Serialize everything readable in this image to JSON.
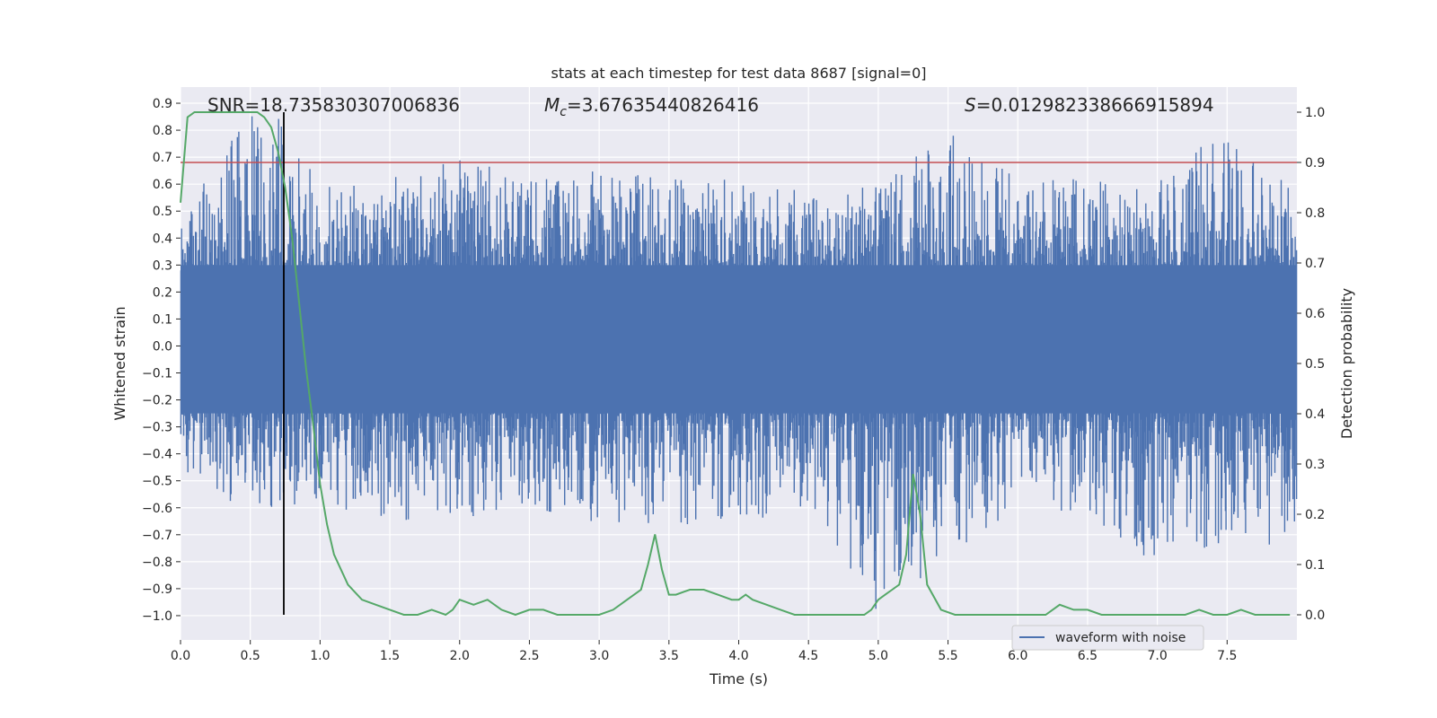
{
  "chart_data": {
    "type": "line",
    "title": "stats at each timestep for test data 8687 [signal=0]",
    "xlabel": "Time (s)",
    "ylabel_left": "Whitened strain",
    "ylabel_right": "Detection probability",
    "xlim": [
      0.0,
      8.0
    ],
    "ylim_left": [
      -1.09,
      0.96
    ],
    "ylim_right": [
      -0.05,
      1.05
    ],
    "x_ticks": [
      "0.0",
      "0.5",
      "1.0",
      "1.5",
      "2.0",
      "2.5",
      "3.0",
      "3.5",
      "4.0",
      "4.5",
      "5.0",
      "5.5",
      "6.0",
      "6.5",
      "7.0",
      "7.5"
    ],
    "y_ticks_left": [
      "0.9",
      "0.8",
      "0.7",
      "0.6",
      "0.5",
      "0.4",
      "0.3",
      "0.2",
      "0.1",
      "0.0",
      "-0.1",
      "-0.2",
      "-0.3",
      "-0.4",
      "-0.5",
      "-0.6",
      "-0.7",
      "-0.8",
      "-0.9",
      "-1.0"
    ],
    "y_ticks_right": [
      "1.0",
      "0.9",
      "0.8",
      "0.7",
      "0.6",
      "0.5",
      "0.4",
      "0.3",
      "0.2",
      "0.1",
      "0.0"
    ],
    "grid": true,
    "legend_position": "bottom-right",
    "legend": [
      "waveform with noise"
    ],
    "annotations": {
      "snr": "SNR=18.735830307006836",
      "mc_symbol": "M",
      "mc_sub": "c",
      "mc_value": "=3.67635440826416",
      "s_symbol": "S",
      "s_value": "=0.012982338666915894"
    },
    "threshold_probability": 0.9,
    "vertical_marker_time": 0.74,
    "colors": {
      "waveform": "#4c72b0",
      "probability": "#55a868",
      "threshold": "#c44e52",
      "marker": "#000000",
      "background": "#eaeaf2",
      "grid": "#ffffff"
    },
    "waveform": {
      "name": "waveform with noise",
      "envelope_t": [
        0.0,
        0.25,
        0.5,
        0.75,
        1.0,
        1.5,
        2.0,
        2.5,
        3.0,
        3.5,
        4.0,
        4.5,
        5.0,
        5.5,
        6.0,
        6.5,
        7.0,
        7.5,
        8.0
      ],
      "envelope_max": [
        0.45,
        0.68,
        0.88,
        0.84,
        0.6,
        0.62,
        0.7,
        0.62,
        0.65,
        0.62,
        0.62,
        0.58,
        0.6,
        0.8,
        0.62,
        0.62,
        0.62,
        0.82,
        0.62
      ],
      "envelope_min": [
        -0.45,
        -0.55,
        -0.62,
        -0.6,
        -0.58,
        -0.68,
        -0.65,
        -0.6,
        -0.66,
        -0.68,
        -0.66,
        -0.6,
        -1.0,
        -0.78,
        -0.6,
        -0.62,
        -0.84,
        -0.72,
        -0.76
      ]
    },
    "probability": {
      "t": [
        0.0,
        0.05,
        0.1,
        0.2,
        0.3,
        0.4,
        0.5,
        0.55,
        0.6,
        0.65,
        0.7,
        0.75,
        0.8,
        0.85,
        0.9,
        0.95,
        1.0,
        1.05,
        1.1,
        1.2,
        1.3,
        1.4,
        1.5,
        1.6,
        1.7,
        1.8,
        1.9,
        1.95,
        2.0,
        2.1,
        2.2,
        2.3,
        2.4,
        2.5,
        2.6,
        2.7,
        2.8,
        2.9,
        3.0,
        3.1,
        3.2,
        3.3,
        3.35,
        3.4,
        3.45,
        3.5,
        3.55,
        3.65,
        3.75,
        3.85,
        3.95,
        4.0,
        4.05,
        4.1,
        4.2,
        4.3,
        4.4,
        4.5,
        4.6,
        4.7,
        4.8,
        4.9,
        4.95,
        5.0,
        5.05,
        5.1,
        5.15,
        5.2,
        5.25,
        5.3,
        5.35,
        5.45,
        5.55,
        5.65,
        5.75,
        5.85,
        6.0,
        6.1,
        6.2,
        6.3,
        6.4,
        6.5,
        6.6,
        6.7,
        6.8,
        6.9,
        7.0,
        7.1,
        7.2,
        7.3,
        7.4,
        7.5,
        7.6,
        7.7,
        7.8,
        7.95
      ],
      "p": [
        0.82,
        0.99,
        1.0,
        1.0,
        1.0,
        1.0,
        1.0,
        1.0,
        0.99,
        0.97,
        0.92,
        0.85,
        0.75,
        0.62,
        0.49,
        0.38,
        0.26,
        0.18,
        0.12,
        0.06,
        0.03,
        0.02,
        0.01,
        0.0,
        0.0,
        0.01,
        0.0,
        0.01,
        0.03,
        0.02,
        0.03,
        0.01,
        0.0,
        0.01,
        0.01,
        0.0,
        0.0,
        0.0,
        0.0,
        0.01,
        0.03,
        0.05,
        0.1,
        0.16,
        0.09,
        0.04,
        0.04,
        0.05,
        0.05,
        0.04,
        0.03,
        0.03,
        0.04,
        0.03,
        0.02,
        0.01,
        0.0,
        0.0,
        0.0,
        0.0,
        0.0,
        0.0,
        0.01,
        0.03,
        0.04,
        0.05,
        0.06,
        0.12,
        0.28,
        0.2,
        0.06,
        0.01,
        0.0,
        0.0,
        0.0,
        0.0,
        0.0,
        0.0,
        0.0,
        0.02,
        0.01,
        0.01,
        0.0,
        0.0,
        0.0,
        0.0,
        0.0,
        0.0,
        0.0,
        0.01,
        0.0,
        0.0,
        0.01,
        0.0,
        0.0,
        0.0
      ]
    }
  }
}
